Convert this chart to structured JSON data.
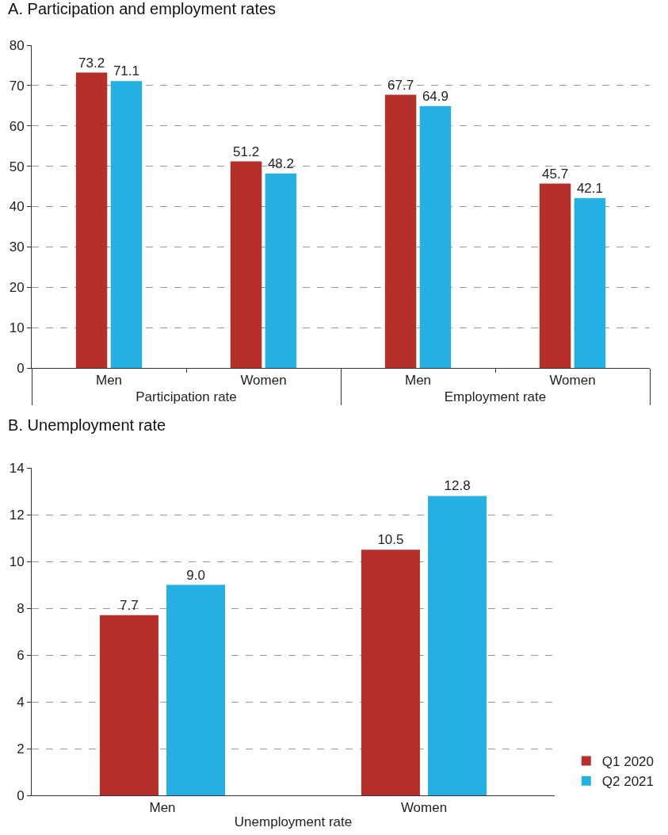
{
  "chart_data": [
    {
      "type": "bar",
      "title": "A. Participation and employment rates",
      "categories": [
        "Men",
        "Women",
        "Men",
        "Women"
      ],
      "annotations": [
        "Participation rate",
        "Employment rate"
      ],
      "series": [
        {
          "color": "#b5302a",
          "values": [
            73.2,
            51.2,
            67.7,
            45.7
          ],
          "value_labels": [
            "73.2",
            "51.2",
            "67.7",
            "45.7"
          ]
        },
        {
          "color": "#25b0e4",
          "values": [
            71.1,
            48.2,
            64.9,
            42.1
          ],
          "value_labels": [
            "71.1",
            "48.2",
            "64.9",
            "42.1"
          ]
        }
      ],
      "ylim": [
        0,
        80
      ],
      "yticks": [
        0,
        10,
        20,
        30,
        40,
        50,
        60,
        70,
        80
      ],
      "grid": "y",
      "legend": false
    },
    {
      "type": "bar",
      "title": "B. Unemployment rate",
      "categories": [
        "Men",
        "Women"
      ],
      "xlabel": "Unemployment rate",
      "series": [
        {
          "name": "Q1 2020",
          "color": "#b5302a",
          "values": [
            7.7,
            10.5
          ],
          "value_labels": [
            "7.7",
            "10.5"
          ]
        },
        {
          "name": "Q2 2021",
          "color": "#25b0e4",
          "values": [
            9.0,
            12.8
          ],
          "value_labels": [
            "9.0",
            "12.8"
          ]
        }
      ],
      "ylim": [
        0,
        14
      ],
      "yticks": [
        0,
        2,
        4,
        6,
        8,
        10,
        12,
        14
      ],
      "grid": "y",
      "legend": "bottom right"
    }
  ]
}
